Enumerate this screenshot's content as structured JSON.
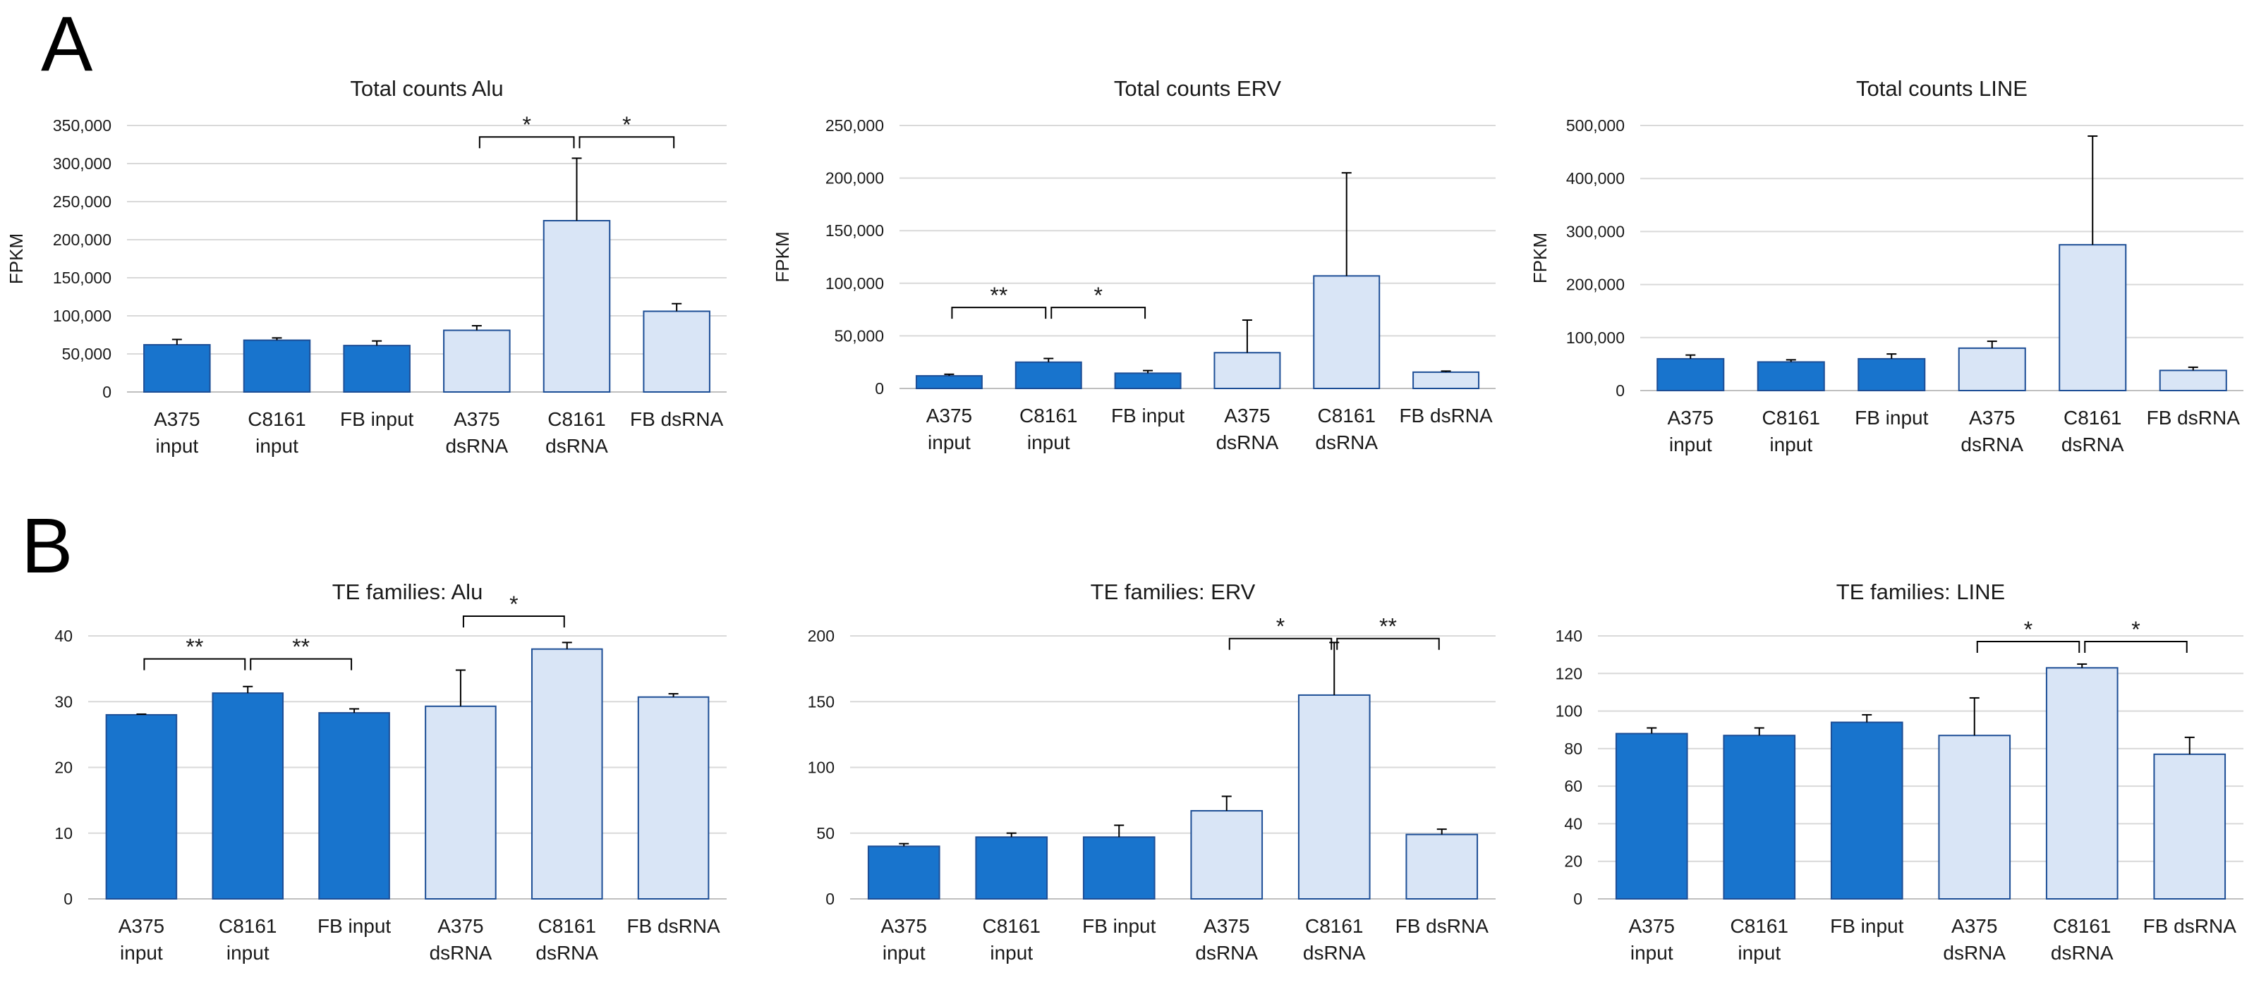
{
  "panels": [
    {
      "label": "A"
    },
    {
      "label": "B"
    }
  ],
  "chart_data": [
    {
      "type": "bar",
      "title": "Total counts Alu",
      "xlabel": "",
      "ylabel": "FPKM",
      "ylim": [
        0,
        350000
      ],
      "yticks": [
        0,
        50000,
        100000,
        150000,
        200000,
        250000,
        300000,
        350000
      ],
      "categories": [
        [
          "A375",
          "input"
        ],
        [
          "C8161",
          "input"
        ],
        [
          "FB input"
        ],
        [
          "A375",
          "dsRNA"
        ],
        [
          "C8161",
          "dsRNA"
        ],
        [
          "FB dsRNA"
        ]
      ],
      "values": [
        62000,
        68000,
        61000,
        81000,
        225000,
        106000
      ],
      "errors": [
        7000,
        3000,
        6000,
        6000,
        82000,
        10000
      ],
      "groups": [
        "input",
        "input",
        "input",
        "dsRNA",
        "dsRNA",
        "dsRNA"
      ],
      "significance": [
        {
          "from": 3,
          "to": 4,
          "label": "*",
          "y": 335000
        },
        {
          "from": 4,
          "to": 5,
          "label": "*",
          "y": 335000
        }
      ]
    },
    {
      "type": "bar",
      "title": "Total counts ERV",
      "xlabel": "",
      "ylabel": "FPKM",
      "ylim": [
        0,
        250000
      ],
      "yticks": [
        0,
        50000,
        100000,
        150000,
        200000,
        250000
      ],
      "categories": [
        [
          "A375",
          "input"
        ],
        [
          "C8161",
          "input"
        ],
        [
          "FB input"
        ],
        [
          "A375",
          "dsRNA"
        ],
        [
          "C8161",
          "dsRNA"
        ],
        [
          "FB dsRNA"
        ]
      ],
      "values": [
        12000,
        25000,
        14500,
        34000,
        107000,
        15500
      ],
      "errors": [
        1500,
        3500,
        2500,
        31000,
        98000,
        1000
      ],
      "groups": [
        "input",
        "input",
        "input",
        "dsRNA",
        "dsRNA",
        "dsRNA"
      ],
      "significance": [
        {
          "from": 0,
          "to": 1,
          "label": "**",
          "y": 77000
        },
        {
          "from": 1,
          "to": 2,
          "label": "*",
          "y": 77000
        }
      ]
    },
    {
      "type": "bar",
      "title": "Total counts LINE",
      "xlabel": "",
      "ylabel": "FPKM",
      "ylim": [
        0,
        500000
      ],
      "yticks": [
        0,
        100000,
        200000,
        300000,
        400000,
        500000
      ],
      "categories": [
        [
          "A375",
          "input"
        ],
        [
          "C8161",
          "input"
        ],
        [
          "FB input"
        ],
        [
          "A375",
          "dsRNA"
        ],
        [
          "C8161",
          "dsRNA"
        ],
        [
          "FB dsRNA"
        ]
      ],
      "values": [
        60000,
        54000,
        60000,
        80000,
        275000,
        38000
      ],
      "errors": [
        7000,
        4000,
        9000,
        13000,
        205000,
        6000
      ],
      "groups": [
        "input",
        "input",
        "input",
        "dsRNA",
        "dsRNA",
        "dsRNA"
      ],
      "significance": []
    },
    {
      "type": "bar",
      "title": "TE families: Alu",
      "xlabel": "",
      "ylabel": "",
      "ylim": [
        0,
        40
      ],
      "yticks": [
        0,
        10,
        20,
        30,
        40
      ],
      "categories": [
        [
          "A375",
          "input"
        ],
        [
          "C8161",
          "input"
        ],
        [
          "FB input"
        ],
        [
          "A375",
          "dsRNA"
        ],
        [
          "C8161",
          "dsRNA"
        ],
        [
          "FB dsRNA"
        ]
      ],
      "values": [
        28,
        31.3,
        28.3,
        29.3,
        38,
        30.7
      ],
      "errors": [
        0.1,
        1.0,
        0.6,
        5.5,
        1.0,
        0.5
      ],
      "groups": [
        "input",
        "input",
        "input",
        "dsRNA",
        "dsRNA",
        "dsRNA"
      ],
      "significance": [
        {
          "from": 0,
          "to": 1,
          "label": "**",
          "y": 36.5
        },
        {
          "from": 1,
          "to": 2,
          "label": "**",
          "y": 36.5
        },
        {
          "from": 3,
          "to": 4,
          "label": "*",
          "y": 43
        }
      ]
    },
    {
      "type": "bar",
      "title": "TE families: ERV",
      "xlabel": "",
      "ylabel": "",
      "ylim": [
        0,
        200
      ],
      "yticks": [
        0,
        50,
        100,
        150,
        200
      ],
      "categories": [
        [
          "A375",
          "input"
        ],
        [
          "C8161",
          "input"
        ],
        [
          "FB input"
        ],
        [
          "A375",
          "dsRNA"
        ],
        [
          "C8161",
          "dsRNA"
        ],
        [
          "FB dsRNA"
        ]
      ],
      "values": [
        40,
        47,
        47,
        67,
        155,
        49
      ],
      "errors": [
        2,
        3,
        9,
        11,
        40,
        4
      ],
      "groups": [
        "input",
        "input",
        "input",
        "dsRNA",
        "dsRNA",
        "dsRNA"
      ],
      "significance": [
        {
          "from": 3,
          "to": 4,
          "label": "*",
          "y": 198
        },
        {
          "from": 4,
          "to": 5,
          "label": "**",
          "y": 198
        }
      ]
    },
    {
      "type": "bar",
      "title": "TE families: LINE",
      "xlabel": "",
      "ylabel": "",
      "ylim": [
        0,
        140
      ],
      "yticks": [
        0,
        20,
        40,
        60,
        80,
        100,
        120,
        140
      ],
      "categories": [
        [
          "A375",
          "input"
        ],
        [
          "C8161",
          "input"
        ],
        [
          "FB input"
        ],
        [
          "A375",
          "dsRNA"
        ],
        [
          "C8161",
          "dsRNA"
        ],
        [
          "FB dsRNA"
        ]
      ],
      "values": [
        88,
        87,
        94,
        87,
        123,
        77
      ],
      "errors": [
        3,
        4,
        4,
        20,
        2,
        9
      ],
      "groups": [
        "input",
        "input",
        "input",
        "dsRNA",
        "dsRNA",
        "dsRNA"
      ],
      "significance": [
        {
          "from": 3,
          "to": 4,
          "label": "*",
          "y": 137
        },
        {
          "from": 4,
          "to": 5,
          "label": "*",
          "y": 137
        }
      ]
    }
  ],
  "colors": {
    "input_fill": "#1874cd",
    "dsrna_fill": "#d9e5f6",
    "bar_stroke": "#1d4e96",
    "grid": "#d9d9d9",
    "axis": "#bfbfbf",
    "error_bar": "#000000"
  }
}
